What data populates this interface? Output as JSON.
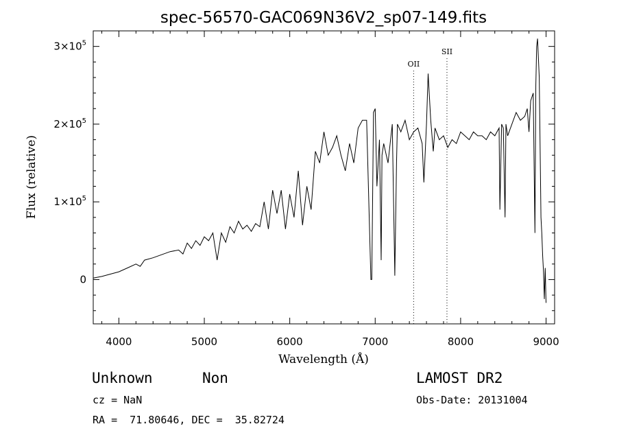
{
  "chart_data": {
    "type": "line",
    "title": "spec-56570-GAC069N36V2_sp07-149.fits",
    "xlabel": "Wavelength (Å)",
    "ylabel": "Flux (relative)",
    "xlim": [
      3700,
      9100
    ],
    "ylim": [
      -57000,
      320000
    ],
    "xticks": [
      4000,
      5000,
      6000,
      7000,
      8000,
      9000
    ],
    "yticks": [
      {
        "value": 0,
        "base": "0",
        "exp": ""
      },
      {
        "value": 100000,
        "base": "1×10",
        "exp": "5"
      },
      {
        "value": 200000,
        "base": "2×10",
        "exp": "5"
      },
      {
        "value": 300000,
        "base": "3×10",
        "exp": "5"
      }
    ],
    "line_markers": [
      {
        "label": "OII",
        "x": 7450
      },
      {
        "label": "SII",
        "x": 7840
      }
    ],
    "series": [
      {
        "x": [
          3700,
          3800,
          3900,
          4000,
          4100,
          4200,
          4250,
          4300,
          4400,
          4500,
          4600,
          4700,
          4750,
          4800,
          4850,
          4900,
          4950,
          5000,
          5050,
          5100,
          5150,
          5200,
          5250,
          5300,
          5350,
          5400,
          5450,
          5500,
          5550,
          5600,
          5650,
          5700,
          5750,
          5800,
          5850,
          5900,
          5950,
          6000,
          6050,
          6100,
          6150,
          6200,
          6250,
          6300,
          6350,
          6400,
          6450,
          6500,
          6550,
          6600,
          6650,
          6700,
          6750,
          6800,
          6850,
          6900,
          6950,
          6960,
          6980,
          7000,
          7020,
          7050,
          7070,
          7080,
          7100,
          7150,
          7200,
          7230,
          7250,
          7260,
          7280,
          7300,
          7350,
          7400,
          7450,
          7500,
          7550,
          7570,
          7600,
          7620,
          7650,
          7680,
          7700,
          7750,
          7800,
          7850,
          7900,
          7950,
          8000,
          8050,
          8100,
          8150,
          8200,
          8250,
          8300,
          8350,
          8400,
          8450,
          8460,
          8480,
          8500,
          8520,
          8530,
          8550,
          8600,
          8650,
          8700,
          8750,
          8780,
          8800,
          8820,
          8850,
          8870,
          8880,
          8890,
          8900,
          8920,
          8940,
          8950,
          8960,
          8970,
          8980,
          8990,
          9000
        ],
        "y": [
          2000,
          4000,
          7000,
          10000,
          15000,
          20000,
          17000,
          25000,
          28000,
          32000,
          36000,
          38000,
          33000,
          47000,
          40000,
          50000,
          44000,
          55000,
          50000,
          60000,
          25000,
          60000,
          48000,
          68000,
          60000,
          75000,
          65000,
          70000,
          62000,
          72000,
          68000,
          100000,
          65000,
          115000,
          85000,
          115000,
          65000,
          110000,
          80000,
          140000,
          70000,
          120000,
          90000,
          165000,
          150000,
          190000,
          160000,
          170000,
          185000,
          160000,
          140000,
          175000,
          150000,
          195000,
          205000,
          205000,
          0,
          0,
          215000,
          220000,
          120000,
          180000,
          25000,
          160000,
          175000,
          150000,
          200000,
          5000,
          150000,
          200000,
          195000,
          190000,
          205000,
          180000,
          190000,
          195000,
          175000,
          125000,
          200000,
          265000,
          205000,
          165000,
          195000,
          180000,
          185000,
          170000,
          180000,
          175000,
          190000,
          185000,
          180000,
          190000,
          185000,
          185000,
          180000,
          190000,
          185000,
          195000,
          90000,
          200000,
          195000,
          80000,
          200000,
          185000,
          200000,
          215000,
          205000,
          210000,
          220000,
          190000,
          230000,
          240000,
          60000,
          250000,
          300000,
          310000,
          260000,
          80000,
          60000,
          30000,
          10000,
          -25000,
          15000,
          -30000
        ]
      }
    ]
  },
  "info": {
    "class": "Unknown",
    "subclass": "Non",
    "survey": "LAMOST DR2",
    "cz": "cz = NaN",
    "obsdate": "Obs-Date: 20131004",
    "radec": "RA =  71.80646, DEC =  35.82724"
  }
}
